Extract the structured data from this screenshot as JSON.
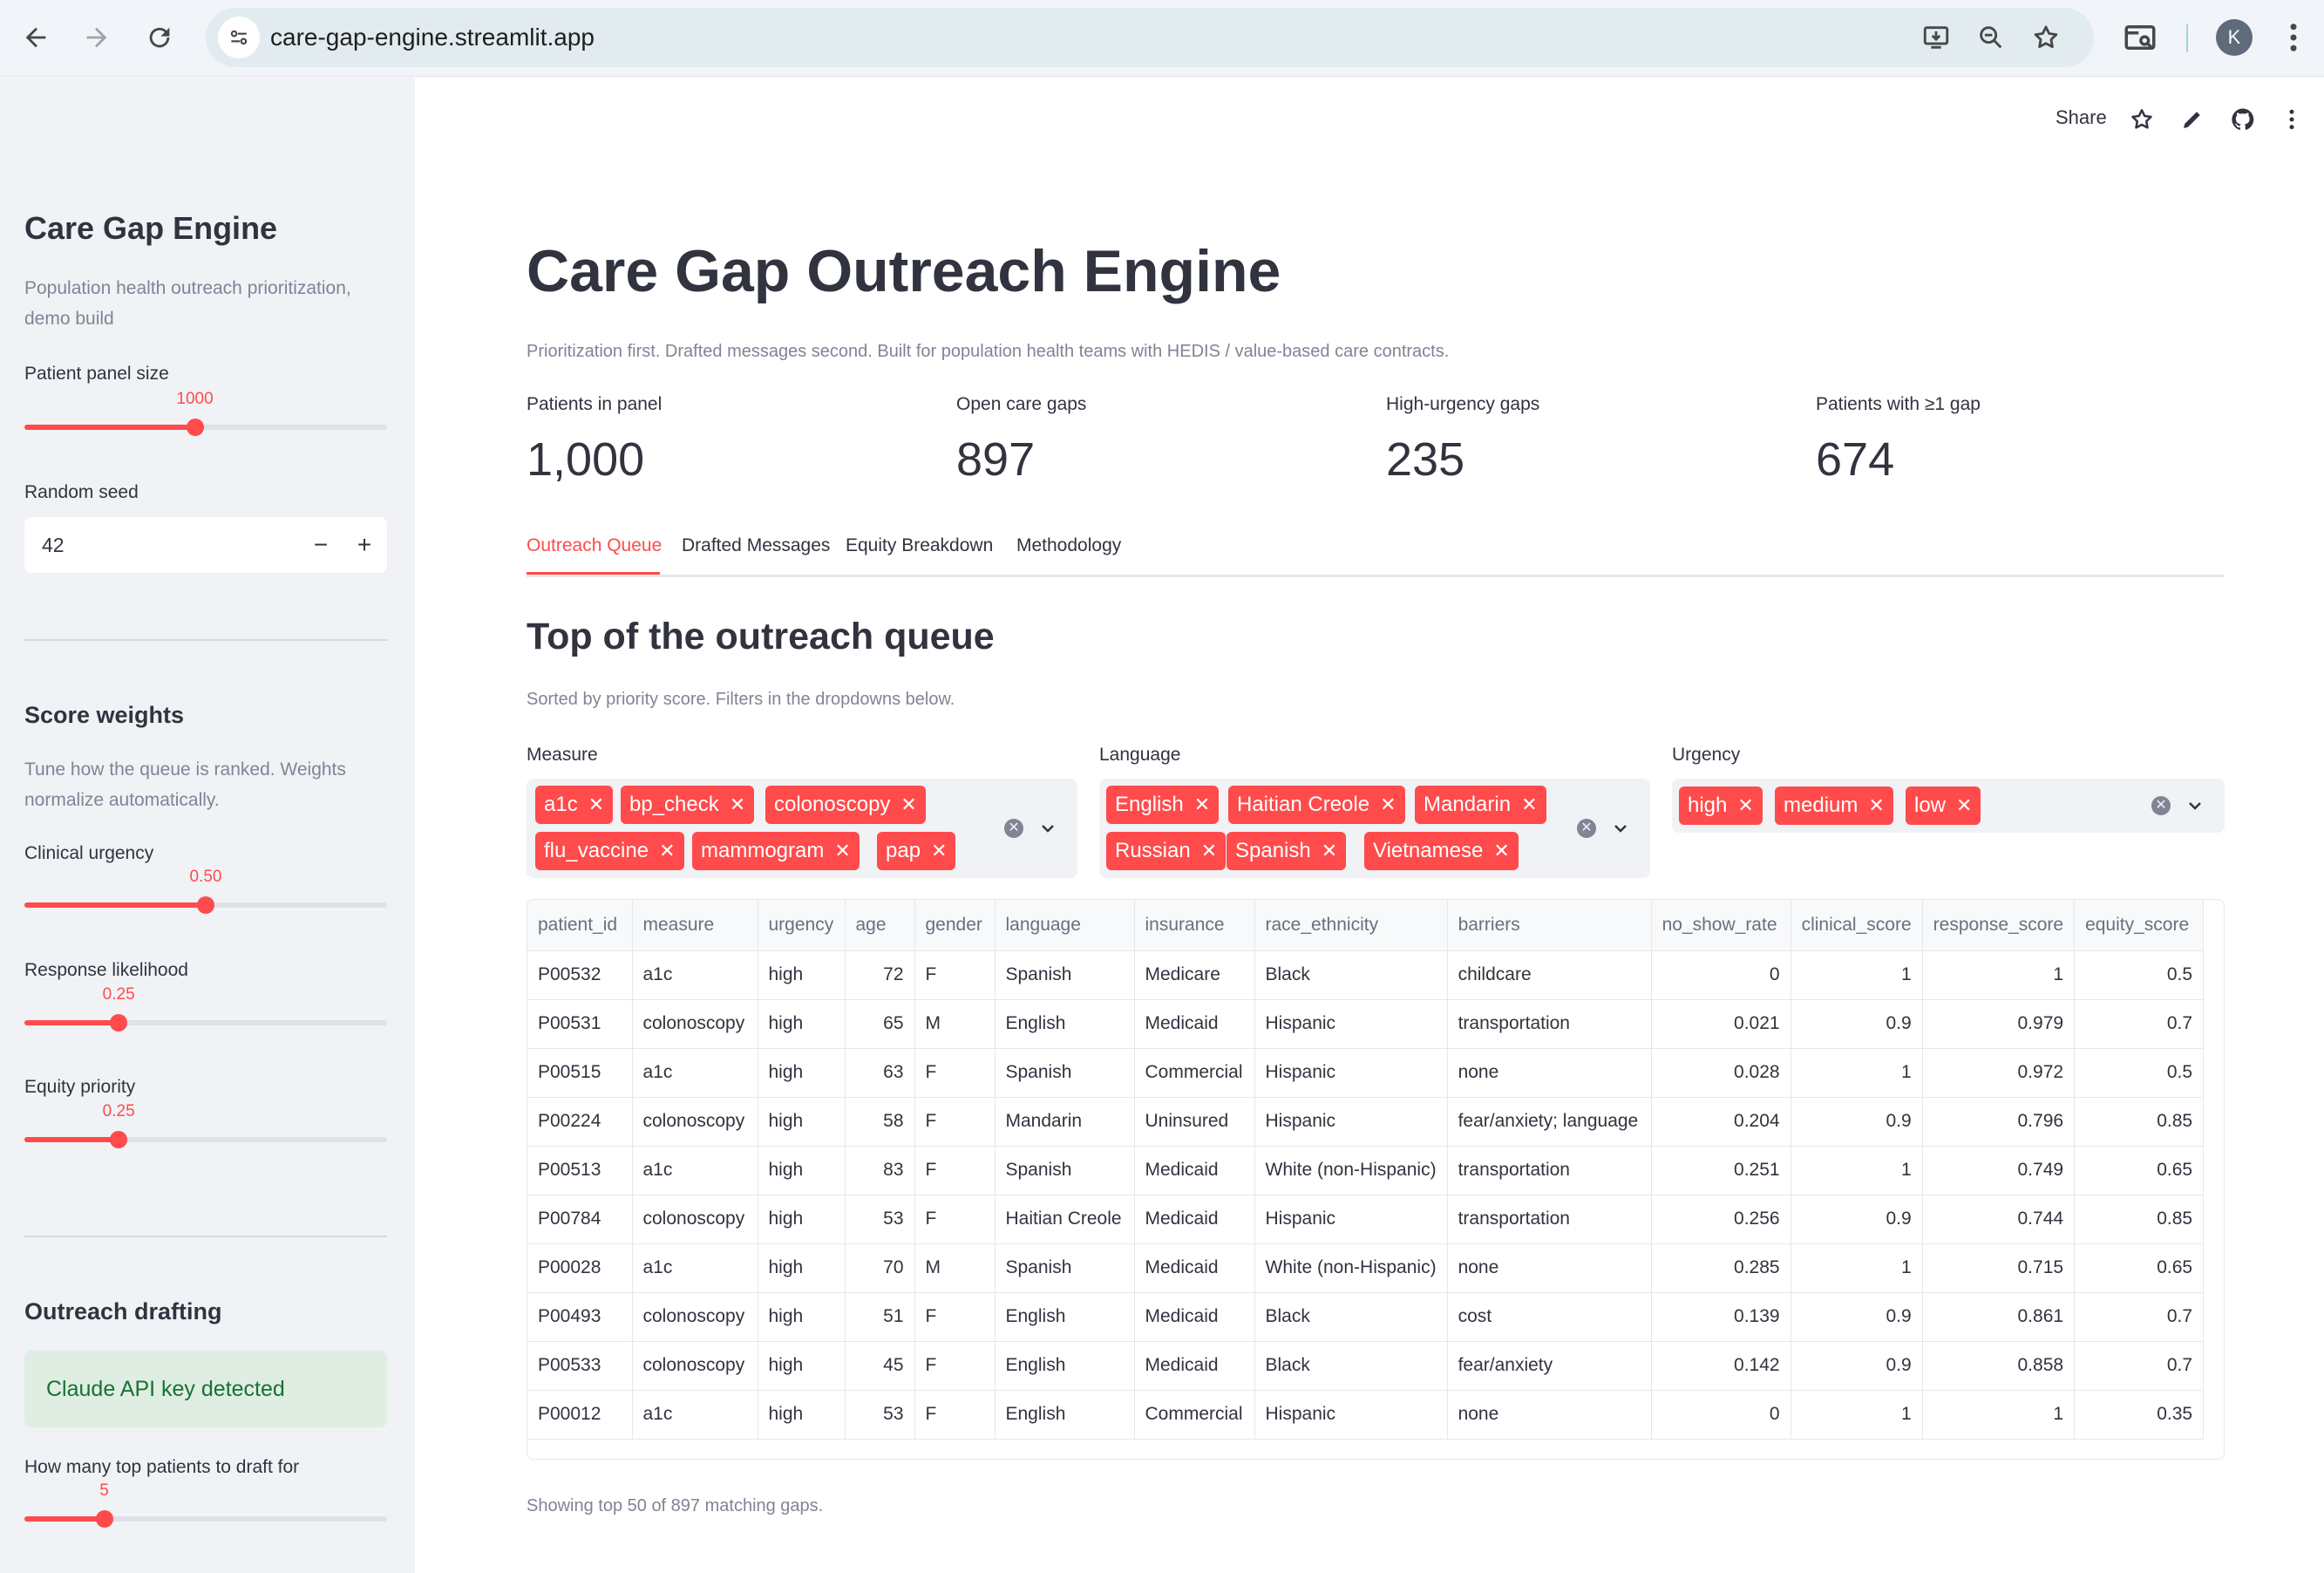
{
  "browser": {
    "url": "care-gap-engine.streamlit.app",
    "avatar_letter": "K"
  },
  "toolbar": {
    "share_label": "Share"
  },
  "sidebar": {
    "title": "Care Gap Engine",
    "caption": "Population health outreach prioritization, demo build",
    "panel_size": {
      "label": "Patient panel size",
      "value": "1000",
      "fraction": 0.47
    },
    "random_seed": {
      "label": "Random seed",
      "value": "42",
      "minus": "−",
      "plus": "+"
    },
    "score_weights": {
      "heading": "Score weights",
      "caption": "Tune how the queue is ranked. Weights normalize automatically.",
      "clinical": {
        "label": "Clinical urgency",
        "value": "0.50",
        "fraction": 0.5
      },
      "response": {
        "label": "Response likelihood",
        "value": "0.25",
        "fraction": 0.25
      },
      "equity": {
        "label": "Equity priority",
        "value": "0.25",
        "fraction": 0.25
      }
    },
    "outreach": {
      "heading": "Outreach drafting",
      "alert": "Claude API key detected",
      "top_patients": {
        "label": "How many top patients to draft for",
        "value": "5",
        "fraction": 0.22
      }
    }
  },
  "main": {
    "title": "Care Gap Outreach Engine",
    "caption": "Prioritization first. Drafted messages second. Built for population health teams with HEDIS / value-based care contracts.",
    "metrics": [
      {
        "label": "Patients in panel",
        "value": "1,000"
      },
      {
        "label": "Open care gaps",
        "value": "897"
      },
      {
        "label": "High-urgency gaps",
        "value": "235"
      },
      {
        "label": "Patients with ≥1 gap",
        "value": "674"
      }
    ],
    "tabs": [
      "Outreach Queue",
      "Drafted Messages",
      "Equity Breakdown",
      "Methodology"
    ],
    "section_title": "Top of the outreach queue",
    "section_caption": "Sorted by priority score. Filters in the dropdowns below.",
    "filters": {
      "measure": {
        "label": "Measure",
        "chips": [
          "a1c",
          "bp_check",
          "colonoscopy",
          "flu_vaccine",
          "mammogram",
          "pap"
        ]
      },
      "language": {
        "label": "Language",
        "chips": [
          "English",
          "Haitian Creole",
          "Mandarin",
          "Russian",
          "Spanish",
          "Vietnamese"
        ]
      },
      "urgency": {
        "label": "Urgency",
        "chips": [
          "high",
          "medium",
          "low"
        ]
      }
    },
    "table": {
      "columns": [
        "patient_id",
        "measure",
        "urgency",
        "age",
        "gender",
        "language",
        "insurance",
        "race_ethnicity",
        "barriers",
        "no_show_rate",
        "clinical_score",
        "response_score",
        "equity_score"
      ],
      "rows": [
        [
          "P00532",
          "a1c",
          "high",
          "72",
          "F",
          "Spanish",
          "Medicare",
          "Black",
          "childcare",
          "0",
          "1",
          "1",
          "0.5"
        ],
        [
          "P00531",
          "colonoscopy",
          "high",
          "65",
          "M",
          "English",
          "Medicaid",
          "Hispanic",
          "transportation",
          "0.021",
          "0.9",
          "0.979",
          "0.7"
        ],
        [
          "P00515",
          "a1c",
          "high",
          "63",
          "F",
          "Spanish",
          "Commercial",
          "Hispanic",
          "none",
          "0.028",
          "1",
          "0.972",
          "0.5"
        ],
        [
          "P00224",
          "colonoscopy",
          "high",
          "58",
          "F",
          "Mandarin",
          "Uninsured",
          "Hispanic",
          "fear/anxiety; language",
          "0.204",
          "0.9",
          "0.796",
          "0.85"
        ],
        [
          "P00513",
          "a1c",
          "high",
          "83",
          "F",
          "Spanish",
          "Medicaid",
          "White (non-Hispanic)",
          "transportation",
          "0.251",
          "1",
          "0.749",
          "0.65"
        ],
        [
          "P00784",
          "colonoscopy",
          "high",
          "53",
          "F",
          "Haitian Creole",
          "Medicaid",
          "Hispanic",
          "transportation",
          "0.256",
          "0.9",
          "0.744",
          "0.85"
        ],
        [
          "P00028",
          "a1c",
          "high",
          "70",
          "M",
          "Spanish",
          "Medicaid",
          "White (non-Hispanic)",
          "none",
          "0.285",
          "1",
          "0.715",
          "0.65"
        ],
        [
          "P00493",
          "colonoscopy",
          "high",
          "51",
          "F",
          "English",
          "Medicaid",
          "Black",
          "cost",
          "0.139",
          "0.9",
          "0.861",
          "0.7"
        ],
        [
          "P00533",
          "colonoscopy",
          "high",
          "45",
          "F",
          "English",
          "Medicaid",
          "Black",
          "fear/anxiety",
          "0.142",
          "0.9",
          "0.858",
          "0.7"
        ],
        [
          "P00012",
          "a1c",
          "high",
          "53",
          "F",
          "English",
          "Commercial",
          "Hispanic",
          "none",
          "0",
          "1",
          "1",
          "0.35"
        ]
      ],
      "footer": "Showing top 50 of 897 matching gaps."
    }
  }
}
